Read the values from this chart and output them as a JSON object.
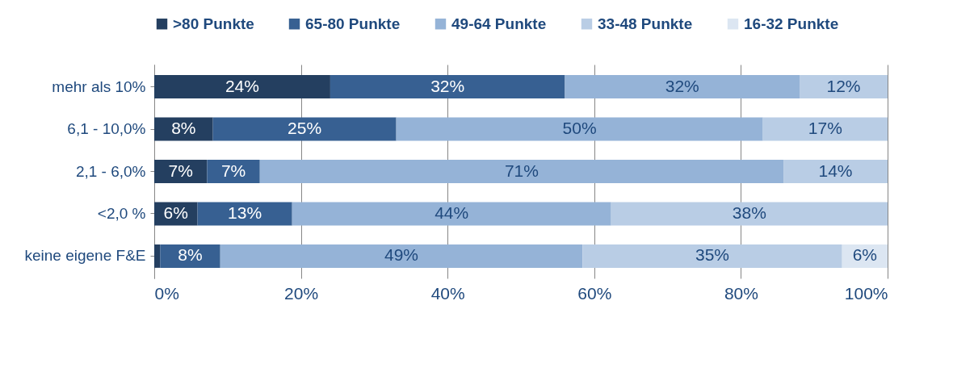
{
  "chart_data": {
    "type": "bar",
    "orientation": "horizontal",
    "stacked": true,
    "categories": [
      "mehr als 10%",
      "6,1 - 10,0%",
      "2,1 - 6,0%",
      "<2,0 %",
      "keine eigene F&E"
    ],
    "series": [
      {
        "name": ">80 Punkte",
        "color": "#243f60",
        "values": [
          24,
          8,
          7.2,
          5.9,
          0.8
        ],
        "value_labels": [
          "24%",
          "8%",
          "7%",
          "6%",
          null
        ]
      },
      {
        "name": "65-80 Punkte",
        "color": "#376092",
        "values": [
          32,
          25,
          7.2,
          12.9,
          8.2
        ],
        "value_labels": [
          "32%",
          "25%",
          "7%",
          "13%",
          "8%"
        ]
      },
      {
        "name": "49-64 Punkte",
        "color": "#95b3d7",
        "values": [
          32,
          50,
          71.4,
          43.5,
          49.4
        ],
        "value_labels": [
          "32%",
          "50%",
          "71%",
          "44%",
          "49%"
        ]
      },
      {
        "name": "33-48 Punkte",
        "color": "#b9cde5",
        "values": [
          12,
          17,
          14.2,
          37.7,
          35.4
        ],
        "value_labels": [
          "12%",
          "17%",
          "14%",
          "38%",
          "35%"
        ]
      },
      {
        "name": "16-32 Punkte",
        "color": "#dce6f2",
        "values": [
          null,
          null,
          null,
          null,
          6.2
        ],
        "value_labels": [
          null,
          null,
          null,
          null,
          "6%"
        ]
      }
    ],
    "xlim": [
      0,
      100
    ],
    "xticks": [
      {
        "value": 0,
        "label": "0%"
      },
      {
        "value": 20,
        "label": "20%"
      },
      {
        "value": 40,
        "label": "40%"
      },
      {
        "value": 60,
        "label": "60%"
      },
      {
        "value": 80,
        "label": "80%"
      },
      {
        "value": 100,
        "label": "100%"
      }
    ],
    "grid": "x",
    "legend": "top right"
  }
}
